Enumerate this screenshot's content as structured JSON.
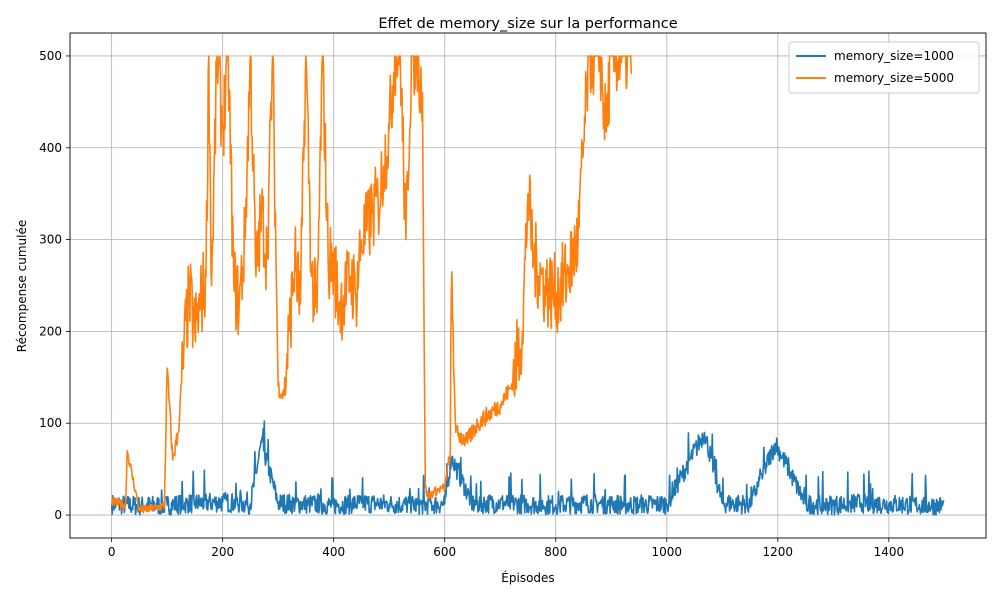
{
  "chart_data": {
    "type": "line",
    "title": "Effet de memory_size sur la performance",
    "xlabel": "Épisodes",
    "ylabel": "Récompense cumulée",
    "xlim": [
      -75,
      1575
    ],
    "ylim": [
      -25,
      525
    ],
    "xticks": [
      0,
      200,
      400,
      600,
      800,
      1000,
      1200,
      1400
    ],
    "yticks": [
      0,
      100,
      200,
      300,
      400,
      500
    ],
    "grid": true,
    "legend_position": "top-right",
    "series": [
      {
        "name": "memory_size=1000",
        "color": "#1f77b4",
        "episodes": 1500,
        "x": [
          0,
          50,
          100,
          150,
          200,
          250,
          270,
          300,
          350,
          400,
          450,
          500,
          550,
          600,
          612,
          650,
          700,
          750,
          800,
          850,
          900,
          950,
          1000,
          1068,
          1100,
          1150,
          1196,
          1250,
          1300,
          1350,
          1400,
          1450,
          1500
        ],
        "y": [
          12,
          10,
          11,
          13,
          14,
          12,
          79,
          13,
          12,
          11,
          13,
          12,
          11,
          12,
          63,
          12,
          13,
          12,
          11,
          13,
          12,
          11,
          12,
          90,
          13,
          12,
          78,
          12,
          11,
          13,
          12,
          11,
          10
        ]
      },
      {
        "name": "memory_size=5000",
        "color": "#ff7f0e",
        "episodes": 937,
        "x": [
          0,
          25,
          28,
          50,
          80,
          95,
          100,
          110,
          120,
          130,
          140,
          150,
          160,
          170,
          175,
          180,
          190,
          200,
          210,
          220,
          230,
          240,
          250,
          260,
          270,
          280,
          290,
          300,
          310,
          320,
          330,
          340,
          350,
          360,
          370,
          380,
          390,
          400,
          410,
          420,
          430,
          440,
          450,
          460,
          470,
          480,
          490,
          500,
          510,
          520,
          530,
          540,
          550,
          560,
          565,
          570,
          580,
          600,
          610,
          612,
          620,
          640,
          660,
          680,
          700,
          720,
          740,
          750,
          760,
          780,
          800,
          820,
          840,
          860,
          880,
          890,
          900,
          920,
          937
        ],
        "y": [
          15,
          10,
          70,
          5,
          8,
          10,
          160,
          60,
          90,
          180,
          240,
          200,
          230,
          260,
          500,
          250,
          500,
          420,
          500,
          250,
          230,
          300,
          500,
          260,
          330,
          280,
          500,
          140,
          130,
          200,
          280,
          230,
          500,
          260,
          220,
          500,
          280,
          270,
          230,
          240,
          260,
          240,
          300,
          310,
          330,
          340,
          380,
          420,
          500,
          500,
          300,
          500,
          500,
          460,
          30,
          20,
          25,
          30,
          70,
          245,
          90,
          80,
          100,
          110,
          120,
          140,
          200,
          350,
          280,
          250,
          240,
          260,
          300,
          500,
          500,
          420,
          500,
          500,
          500
        ]
      }
    ]
  }
}
